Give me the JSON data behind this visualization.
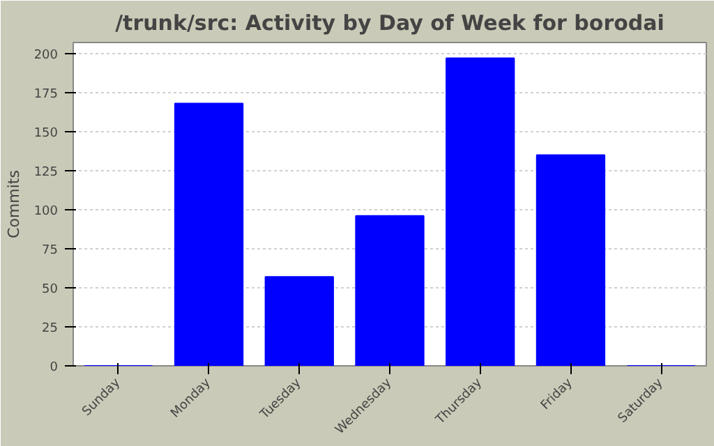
{
  "chart_data": {
    "type": "bar",
    "title": "/trunk/src: Activity by Day of Week for borodai",
    "ylabel": "Commits",
    "categories": [
      "Sunday",
      "Monday",
      "Tuesday",
      "Wednesday",
      "Thursday",
      "Friday",
      "Saturday"
    ],
    "values": [
      0,
      168,
      57,
      96,
      197,
      135,
      0
    ],
    "color": "#0000ff",
    "ylim": [
      0,
      207
    ],
    "yticks": [
      0,
      25,
      50,
      75,
      100,
      125,
      150,
      175,
      200
    ],
    "grid": "y"
  }
}
